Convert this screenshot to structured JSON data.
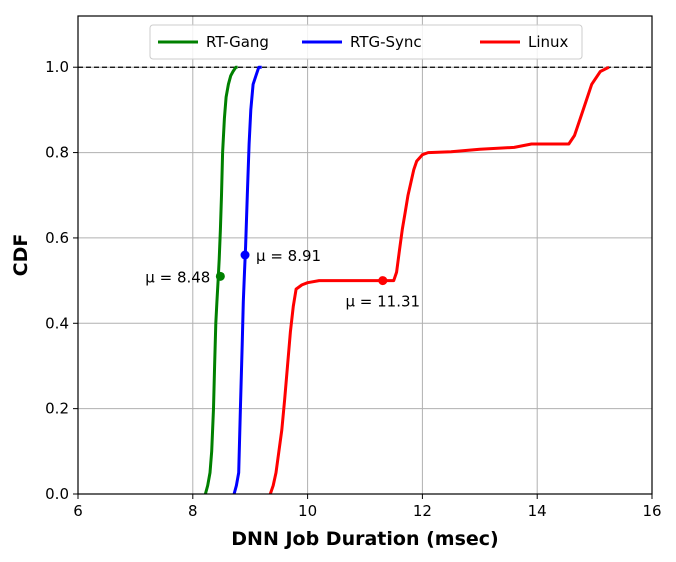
{
  "chart_data": {
    "type": "line",
    "xlabel": "DNN Job Duration (msec)",
    "ylabel": "CDF",
    "xlim": [
      6,
      16
    ],
    "ylim": [
      0.0,
      1.12
    ],
    "xticks": [
      "6",
      "8",
      "10",
      "12",
      "14",
      "16"
    ],
    "yticks": [
      "0.0",
      "0.2",
      "0.4",
      "0.6",
      "0.8",
      "1.0"
    ],
    "grid": true,
    "legend_position": "top-center",
    "reference_line": {
      "y": 1.0,
      "style": "dashed",
      "color": "#000000"
    },
    "series": [
      {
        "name": "RT-Gang",
        "color": "#008000",
        "x": [
          8.22,
          8.26,
          8.3,
          8.33,
          8.36,
          8.38,
          8.4,
          8.42,
          8.44,
          8.46,
          8.48,
          8.5,
          8.52,
          8.55,
          8.58,
          8.62,
          8.66,
          8.7,
          8.75,
          8.78
        ],
        "y": [
          0.0,
          0.02,
          0.05,
          0.1,
          0.2,
          0.3,
          0.4,
          0.45,
          0.5,
          0.55,
          0.62,
          0.7,
          0.8,
          0.88,
          0.93,
          0.96,
          0.98,
          0.99,
          1.0,
          1.0
        ],
        "mean_marker": {
          "x": 8.48,
          "y": 0.51,
          "label": "μ = 8.48"
        }
      },
      {
        "name": "RTG-Sync",
        "color": "#0000ff",
        "x": [
          8.72,
          8.76,
          8.8,
          8.83,
          8.86,
          8.88,
          8.9,
          8.92,
          8.95,
          8.98,
          9.01,
          9.05,
          9.1,
          9.15,
          9.2
        ],
        "y": [
          0.0,
          0.02,
          0.05,
          0.2,
          0.35,
          0.45,
          0.52,
          0.58,
          0.7,
          0.82,
          0.9,
          0.96,
          0.98,
          1.0,
          1.0
        ],
        "mean_marker": {
          "x": 8.91,
          "y": 0.56,
          "label": "μ = 8.91"
        }
      },
      {
        "name": "Linux",
        "color": "#ff0000",
        "x": [
          9.35,
          9.4,
          9.45,
          9.5,
          9.55,
          9.6,
          9.65,
          9.7,
          9.75,
          9.8,
          9.9,
          10.0,
          10.2,
          10.6,
          11.0,
          11.3,
          11.5,
          11.55,
          11.6,
          11.65,
          11.7,
          11.75,
          11.8,
          11.85,
          11.9,
          12.0,
          12.1,
          12.5,
          13.0,
          13.6,
          13.9,
          14.3,
          14.55,
          14.65,
          14.75,
          14.85,
          14.95,
          15.1,
          15.25
        ],
        "y": [
          0.0,
          0.02,
          0.05,
          0.1,
          0.15,
          0.22,
          0.3,
          0.38,
          0.44,
          0.48,
          0.49,
          0.495,
          0.5,
          0.5,
          0.5,
          0.5,
          0.5,
          0.52,
          0.57,
          0.62,
          0.66,
          0.7,
          0.73,
          0.76,
          0.78,
          0.795,
          0.8,
          0.802,
          0.808,
          0.812,
          0.82,
          0.82,
          0.82,
          0.84,
          0.88,
          0.92,
          0.96,
          0.99,
          1.0
        ],
        "mean_marker": {
          "x": 11.31,
          "y": 0.5,
          "label": "μ = 11.31"
        }
      }
    ]
  }
}
